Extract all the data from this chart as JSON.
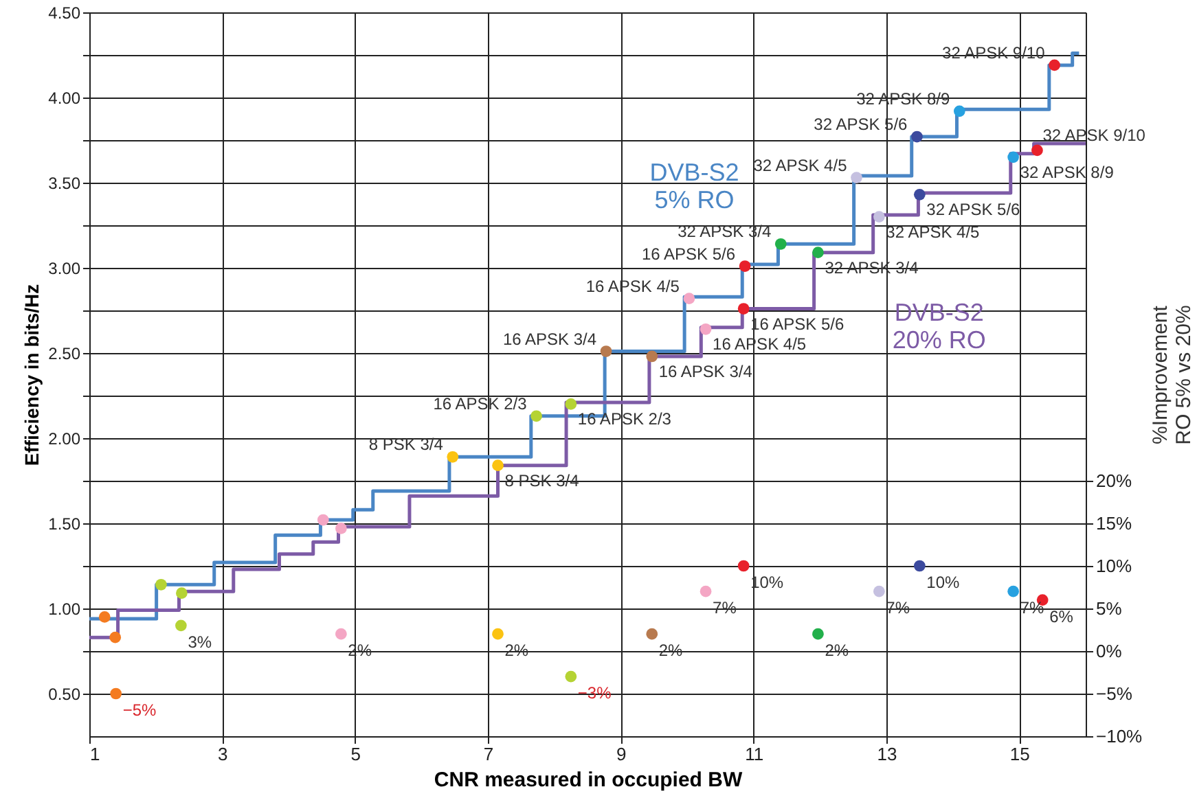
{
  "chart_data": {
    "type": "step",
    "xlabel": "CNR measured in occupied BW",
    "ylabel": "Efficiency in bits/Hz",
    "y2label": "%Improvement RO 5% vs 20%",
    "xlim": [
      1,
      16
    ],
    "xticks": [
      1,
      3,
      5,
      7,
      9,
      11,
      13,
      15
    ],
    "ylim": [
      0.25,
      4.5
    ],
    "yticks": [
      {
        "value": 0.5,
        "label": "0.50"
      },
      {
        "value": 0.75,
        "label": null
      },
      {
        "value": 1,
        "label": "1.00"
      },
      {
        "value": 1.25,
        "label": null
      },
      {
        "value": 1.5,
        "label": "1.50"
      },
      {
        "value": 1.75,
        "label": null
      },
      {
        "value": 2,
        "label": "2.00"
      },
      {
        "value": 2.25,
        "label": null
      },
      {
        "value": 2.5,
        "label": "2.50"
      },
      {
        "value": 2.75,
        "label": null
      },
      {
        "value": 3,
        "label": "3.00"
      },
      {
        "value": 3.25,
        "label": null
      },
      {
        "value": 3.5,
        "label": "3.50"
      },
      {
        "value": 3.75,
        "label": null
      },
      {
        "value": 4,
        "label": "4.00"
      },
      {
        "value": 4.25,
        "label": null
      },
      {
        "value": 4.5,
        "label": "4.50"
      }
    ],
    "y2lim": [
      -10,
      75
    ],
    "y2ticks": [
      {
        "value": -10,
        "label": "−10%"
      },
      {
        "value": -5,
        "label": "−5%"
      },
      {
        "value": 0,
        "label": "0%"
      },
      {
        "value": 5,
        "label": "5%"
      },
      {
        "value": 10,
        "label": "10%"
      },
      {
        "value": 15,
        "label": "15%"
      },
      {
        "value": 20,
        "label": "20%"
      }
    ],
    "grid": true,
    "line_style": "solid",
    "series": [
      {
        "name": "DVB-S2 5% RO",
        "color": "#4a86c5",
        "x": [
          1,
          2.01,
          2.88,
          3.8,
          4.48,
          4.97,
          5.27,
          6.42,
          7.65,
          8.76,
          9.96,
          10.83,
          11.37,
          12.51,
          13.38,
          14.06,
          15.45,
          15.8,
          15.9
        ],
        "values": [
          0.94,
          1.14,
          1.27,
          1.43,
          1.52,
          1.58,
          1.69,
          1.89,
          2.13,
          2.51,
          2.83,
          3.02,
          3.14,
          3.54,
          3.77,
          3.93,
          4.19,
          4.26,
          4.26
        ]
      },
      {
        "name": "DVB-S2 20% RO",
        "color": "#7d5ba6",
        "x": [
          1,
          1.43,
          2.35,
          3.17,
          3.86,
          4.37,
          4.75,
          5.82,
          7.15,
          8.18,
          9.43,
          10.21,
          10.83,
          11.91,
          12.8,
          13.48,
          14.87,
          15.22,
          16
        ],
        "values": [
          0.83,
          0.99,
          1.1,
          1.23,
          1.32,
          1.39,
          1.48,
          1.66,
          1.84,
          2.21,
          2.48,
          2.65,
          2.76,
          3.09,
          3.31,
          3.44,
          3.67,
          3.73,
          3.73
        ]
      },
      {
        "type": "scatter",
        "marker": "circle",
        "x": [
          1.23,
          2.08,
          4.52,
          6.47,
          7.73,
          8.78,
          10.03,
          10.87,
          11.41,
          12.55,
          13.46,
          14.1,
          15.53
        ],
        "values": [
          0.95,
          1.14,
          1.52,
          1.89,
          2.13,
          2.51,
          2.82,
          3.01,
          3.14,
          3.53,
          3.77,
          3.92,
          4.19
        ],
        "colors": [
          "#f47b20",
          "#b5d334",
          "#f4a6c4",
          "#fbc312",
          "#b5d334",
          "#b87a4f",
          "#f4a6c4",
          "#e8212b",
          "#22b04b",
          "#c5c0e0",
          "#3c4a9e",
          "#27a1e0",
          "#e8212b"
        ],
        "value_labels": [
          null,
          null,
          null,
          "8 PSK 3/4",
          "16 APSK 2/3",
          "16 APSK 3/4",
          "16 APSK 4/5",
          "16 APSK 5/6",
          "32 APSK 3/4",
          "32 APSK 4/5",
          "32 APSK 5/6",
          "32 APSK 8/9",
          "32 APSK 9/10"
        ]
      },
      {
        "type": "scatter",
        "marker": "circle",
        "x": [
          1.39,
          2.39,
          4.79,
          7.15,
          8.25,
          9.47,
          10.28,
          10.85,
          11.97,
          12.89,
          13.5,
          14.91,
          15.27
        ],
        "values": [
          0.83,
          1.09,
          1.47,
          1.84,
          2.2,
          2.48,
          2.64,
          2.76,
          3.09,
          3.3,
          3.43,
          3.65,
          3.69
        ],
        "colors": [
          "#f47b20",
          "#b5d334",
          "#f4a6c4",
          "#fbc312",
          "#b5d334",
          "#b87a4f",
          "#f4a6c4",
          "#e8212b",
          "#22b04b",
          "#c5c0e0",
          "#3c4a9e",
          "#27a1e0",
          "#e8212b"
        ],
        "value_labels": [
          null,
          null,
          null,
          "8 PSK 3/4",
          "16 APSK 2/3",
          "16 APSK 3/4",
          "16 APSK 4/5",
          "16 APSK 5/6",
          "32 APSK 3/4",
          "32 APSK 4/5",
          "32 APSK 5/6",
          "32 APSK 8/9",
          "32 APSK 9/10"
        ]
      },
      {
        "type": "scatter",
        "marker": "circle",
        "axis": "y2",
        "x": [
          1.4,
          2.38,
          4.79,
          7.15,
          8.25,
          9.47,
          10.28,
          10.85,
          11.97,
          12.89,
          13.5,
          14.91,
          15.35
        ],
        "values": [
          -5,
          3,
          2,
          2,
          -3,
          2,
          7,
          10,
          2,
          7,
          10,
          7,
          6
        ],
        "colors": [
          "#f47b20",
          "#b5d334",
          "#f4a6c4",
          "#fbc312",
          "#b5d334",
          "#b87a4f",
          "#f4a6c4",
          "#e8212b",
          "#22b04b",
          "#c5c0e0",
          "#3c4a9e",
          "#27a1e0",
          "#e8212b"
        ],
        "value_labels": [
          "−5%",
          "3%",
          "2%",
          "2%",
          "−3%",
          "2%",
          "7%",
          "10%",
          "2%",
          "7%",
          "10%",
          "7%",
          "6%"
        ]
      }
    ]
  }
}
